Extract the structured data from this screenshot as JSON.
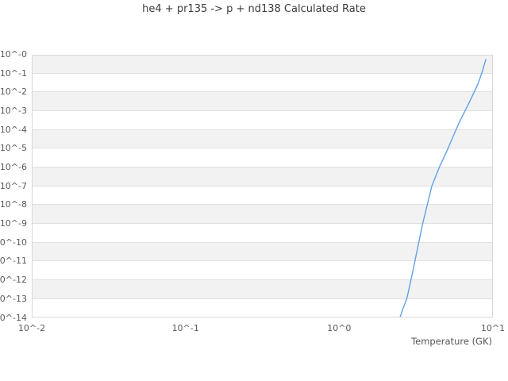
{
  "title": "he4 + pr135 -> p + nd138 Calculated Rate",
  "colors": {
    "line": "#62a1e4",
    "band_fill": "#f2f2f2",
    "grid_line": "#e0e0e0",
    "frame": "#d8d8d8",
    "title_text": "#3c3c3c",
    "tick_text": "#5a5a5a"
  },
  "chart_data": {
    "type": "line",
    "title": "he4 + pr135 -> p + nd138 Calculated Rate",
    "xlabel": "Temperature (GK)",
    "ylabel": "",
    "x_scale": "log",
    "y_scale": "log",
    "x_range_log10": [
      -2,
      1
    ],
    "y_range_log10": [
      0,
      -14
    ],
    "x_ticks": [
      {
        "label": "10^-2",
        "log10": -2
      },
      {
        "label": "10^-1",
        "log10": -1
      },
      {
        "label": "10^0",
        "log10": 0
      },
      {
        "label": "10^1",
        "log10": 1
      }
    ],
    "y_ticks": [
      {
        "label": "10^-0",
        "log10": 0
      },
      {
        "label": "10^-1",
        "log10": -1
      },
      {
        "label": "10^-2",
        "log10": -2
      },
      {
        "label": "10^-3",
        "log10": -3
      },
      {
        "label": "10^-4",
        "log10": -4
      },
      {
        "label": "10^-5",
        "log10": -5
      },
      {
        "label": "10^-6",
        "log10": -6
      },
      {
        "label": "10^-7",
        "log10": -7
      },
      {
        "label": "10^-8",
        "log10": -8
      },
      {
        "label": "10^-9",
        "log10": -9
      },
      {
        "label": "10^-10",
        "log10": -10
      },
      {
        "label": "10^-11",
        "log10": -11
      },
      {
        "label": "10^-12",
        "log10": -12
      },
      {
        "label": "10^-13",
        "log10": -13
      },
      {
        "label": "10^-14",
        "log10": -14
      }
    ],
    "grid": "horizontal-alternating-bands",
    "legend": "none",
    "series": [
      {
        "temperature_GK": [
          2.48,
          2.6,
          2.75,
          3.0,
          3.25,
          3.5,
          4.0,
          4.5,
          5.0,
          6.0,
          7.0,
          8.0,
          8.5,
          9.0
        ],
        "log10_rate": [
          -14.0,
          -13.5,
          -13.0,
          -11.6,
          -10.2,
          -8.95,
          -7.0,
          -5.95,
          -5.15,
          -3.65,
          -2.55,
          -1.55,
          -0.93,
          -0.25
        ]
      }
    ]
  }
}
